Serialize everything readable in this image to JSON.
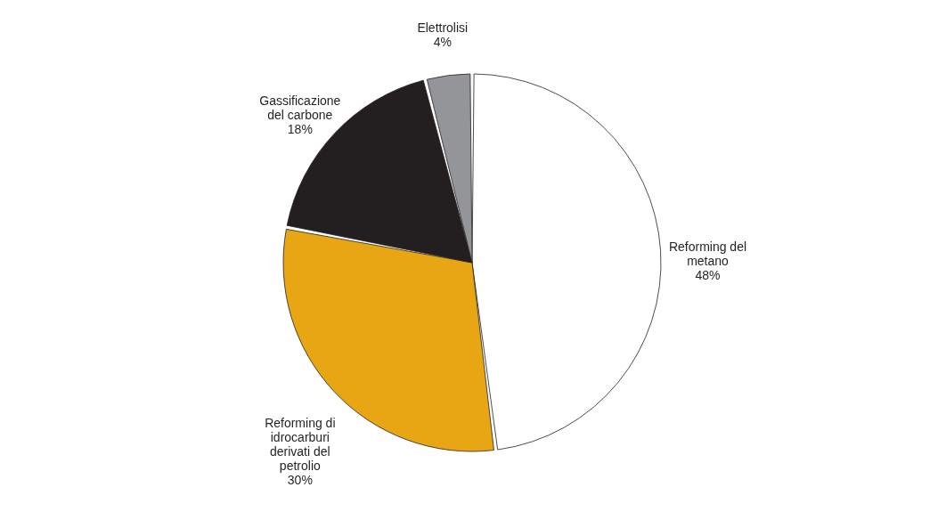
{
  "chart_data": {
    "type": "pie",
    "categories": [
      "Reforming del metano",
      "Reforming di idrocarburi derivati del petrolio",
      "Gassificazione del carbone",
      "Elettrolisi"
    ],
    "values": [
      48,
      30,
      18,
      4
    ],
    "colors": [
      "#ffffff",
      "#e8a614",
      "#231f20",
      "#939598"
    ],
    "value_labels": [
      "48%",
      "30%",
      "18%",
      "4%"
    ],
    "legend": false
  }
}
